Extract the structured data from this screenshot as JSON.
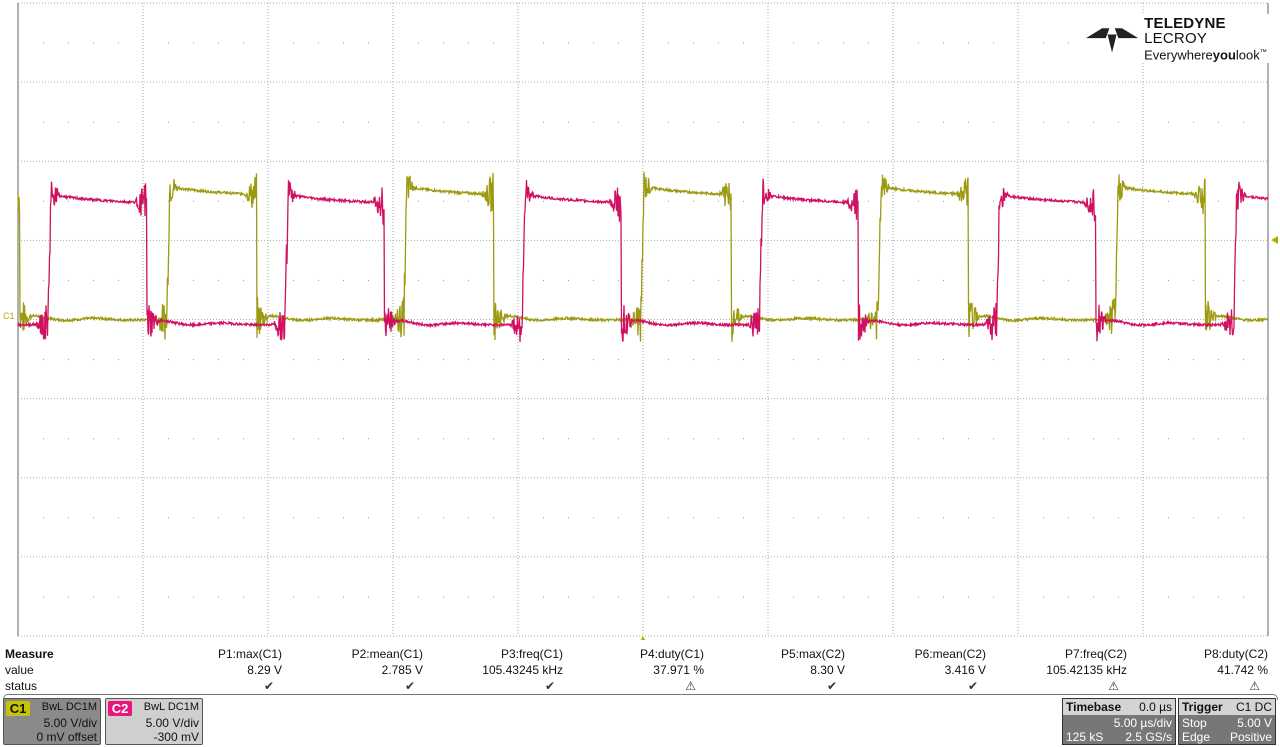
{
  "logo": {
    "brand_bold": "TELEDYNE",
    "brand_light": " LECROY",
    "tagline_pre": "Everywhere",
    "tagline_bold": "you",
    "tagline_post": "look",
    "tm": "™"
  },
  "channel_marker": "C1",
  "measure": {
    "title": "Measure",
    "row_value": "value",
    "row_status": "status",
    "params": [
      {
        "name": "P1:max(C1)",
        "value": "8.29 V",
        "status": "ok"
      },
      {
        "name": "P2:mean(C1)",
        "value": "2.785 V",
        "status": "ok"
      },
      {
        "name": "P3:freq(C1)",
        "value": "105.43245 kHz",
        "status": "ok"
      },
      {
        "name": "P4:duty(C1)",
        "value": "37.971 %",
        "status": "warning"
      },
      {
        "name": "P5:max(C2)",
        "value": "8.30 V",
        "status": "ok"
      },
      {
        "name": "P6:mean(C2)",
        "value": "3.416 V",
        "status": "ok"
      },
      {
        "name": "P7:freq(C2)",
        "value": "105.42135 kHz",
        "status": "warning"
      },
      {
        "name": "P8:duty(C2)",
        "value": "41.742 %",
        "status": "warning"
      }
    ],
    "status_icons": {
      "ok": "✔",
      "warning": "⚠"
    }
  },
  "channels": [
    {
      "id": "C1",
      "coupling": "BwL  DC1M",
      "scale": "5.00 V/div",
      "offset": "0 mV offset",
      "color": "#b5b000",
      "box_bg": "#8a8a8a"
    },
    {
      "id": "C2",
      "coupling": "BwL  DC1M",
      "scale": "5.00 V/div",
      "offset": "-300 mV",
      "color": "#e8157a",
      "box_bg": "#cfcfcf"
    }
  ],
  "timebase": {
    "title": "Timebase",
    "delay": "0.0 µs",
    "scale": "5.00 µs/div",
    "samples": "125 kS",
    "rate": "2.5 GS/s"
  },
  "trigger": {
    "title": "Trigger",
    "source": "C1 DC",
    "mode": "Stop",
    "level": "5.00 V",
    "type": "Edge",
    "slope": "Positive"
  },
  "waveforms": {
    "time_per_div_us": 5,
    "divs_x": 10,
    "volts_per_div": 5,
    "divs_y": 8,
    "traces": [
      {
        "channel": "C1",
        "color": "#9c9a10",
        "period_us": 9.485,
        "duty": 0.3797,
        "first_rise_us": 5.95,
        "high_v": 8.1,
        "offset_v": 0
      },
      {
        "channel": "C2",
        "color": "#d01060",
        "period_us": 9.486,
        "duty": 0.4174,
        "first_rise_us": 1.2,
        "high_v": 7.9,
        "offset_v": -0.3
      }
    ]
  }
}
